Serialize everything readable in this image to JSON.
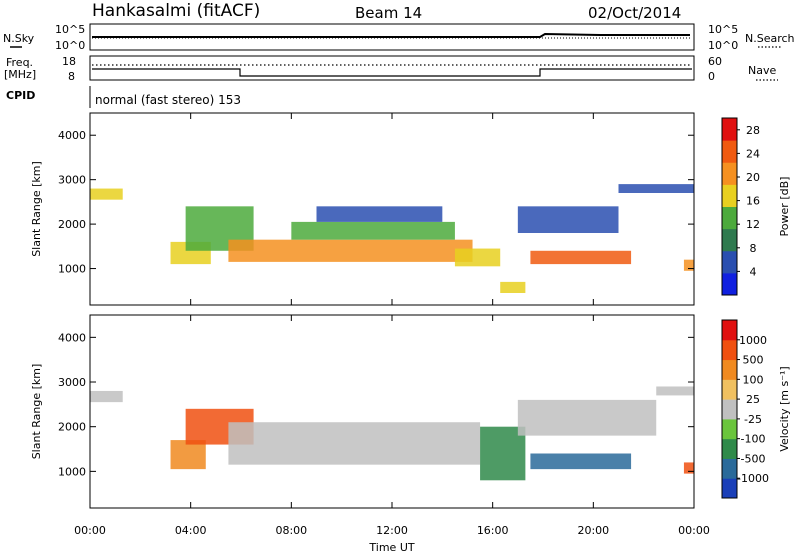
{
  "header": {
    "station": "Hankasalmi (fitACF)",
    "beam": "Beam 14",
    "date": "02/Oct/2014"
  },
  "panels": {
    "noise": {
      "left_label": "N.Sky",
      "right_label": "N.Search",
      "ticks_left": [
        "10^5",
        "10^0"
      ],
      "ticks_right": [
        "10^5",
        "10^0"
      ]
    },
    "freq": {
      "left_label_1": "Freq.",
      "left_label_2": "[MHz]",
      "right_label": "Nave",
      "ticks_left": [
        "18",
        "8"
      ],
      "ticks_right": [
        "60",
        "0"
      ]
    },
    "cpid": {
      "label": "CPID",
      "text": "normal (fast stereo) 153"
    }
  },
  "chart_data": [
    {
      "type": "heatmap",
      "name": "power",
      "ylabel": "Slant Range [km]",
      "xlabel": "Time UT",
      "x_ticks": [
        "00:00",
        "04:00",
        "08:00",
        "12:00",
        "16:00",
        "20:00",
        "00:00"
      ],
      "y_ticks": [
        1000,
        2000,
        3000,
        4000
      ],
      "ylim": [
        180,
        4500
      ],
      "xlim_hours": [
        0,
        24
      ],
      "colorbar": {
        "label": "Power [dB]",
        "ticks": [
          4,
          8,
          12,
          16,
          20,
          24,
          28
        ],
        "range": [
          0,
          30
        ],
        "colors": [
          "#1020e0",
          "#2a4fb0",
          "#2f7a4f",
          "#4caa3c",
          "#e8d020",
          "#f59020",
          "#f05a10",
          "#e01010"
        ]
      },
      "regions": [
        {
          "t0": 0.0,
          "t1": 1.3,
          "r0": 2550,
          "r1": 2800,
          "level": 4
        },
        {
          "t0": 3.2,
          "t1": 4.8,
          "r0": 1100,
          "r1": 1600,
          "level": 4
        },
        {
          "t0": 3.8,
          "t1": 6.5,
          "r0": 1400,
          "r1": 2400,
          "level": 3
        },
        {
          "t0": 5.5,
          "t1": 15.2,
          "r0": 1150,
          "r1": 1650,
          "level": 5
        },
        {
          "t0": 8.0,
          "t1": 14.5,
          "r0": 1650,
          "r1": 2050,
          "level": 3
        },
        {
          "t0": 9.0,
          "t1": 14.0,
          "r0": 2050,
          "r1": 2400,
          "level": 1
        },
        {
          "t0": 14.5,
          "t1": 16.3,
          "r0": 1050,
          "r1": 1450,
          "level": 4
        },
        {
          "t0": 16.3,
          "t1": 17.3,
          "r0": 450,
          "r1": 700,
          "level": 4
        },
        {
          "t0": 17.5,
          "t1": 21.5,
          "r0": 1100,
          "r1": 1400,
          "level": 6
        },
        {
          "t0": 17.0,
          "t1": 21.0,
          "r0": 1800,
          "r1": 2400,
          "level": 1
        },
        {
          "t0": 21.0,
          "t1": 24.0,
          "r0": 2700,
          "r1": 2900,
          "level": 1
        },
        {
          "t0": 23.6,
          "t1": 24.0,
          "r0": 950,
          "r1": 1200,
          "level": 5
        }
      ]
    },
    {
      "type": "heatmap",
      "name": "velocity",
      "ylabel": "Slant Range [km]",
      "xlabel": "Time UT",
      "x_ticks": [
        "00:00",
        "04:00",
        "08:00",
        "12:00",
        "16:00",
        "20:00",
        "00:00"
      ],
      "y_ticks": [
        1000,
        2000,
        3000,
        4000
      ],
      "ylim": [
        180,
        4500
      ],
      "xlim_hours": [
        0,
        24
      ],
      "colorbar": {
        "label": "Velocity [m s⁻¹]",
        "ticks": [
          "1000",
          "500",
          "100",
          "25",
          "-25",
          "-100",
          "-500",
          "-1000"
        ],
        "colors": [
          "#1a3fb8",
          "#2a6a9a",
          "#2f8a4a",
          "#6ac53c",
          "#c0c0c0",
          "#f0c060",
          "#f08a20",
          "#f05010",
          "#e01010"
        ]
      },
      "regions": [
        {
          "t0": 0.0,
          "t1": 1.3,
          "r0": 2550,
          "r1": 2800,
          "level": 4
        },
        {
          "t0": 3.2,
          "t1": 4.6,
          "r0": 1050,
          "r1": 1700,
          "level": 6
        },
        {
          "t0": 3.8,
          "t1": 6.5,
          "r0": 1600,
          "r1": 2400,
          "level": 7
        },
        {
          "t0": 5.5,
          "t1": 15.5,
          "r0": 1150,
          "r1": 2100,
          "level": 4
        },
        {
          "t0": 15.5,
          "t1": 17.3,
          "r0": 800,
          "r1": 2000,
          "level": 2
        },
        {
          "t0": 17.5,
          "t1": 21.5,
          "r0": 1050,
          "r1": 1400,
          "level": 1
        },
        {
          "t0": 17.0,
          "t1": 22.5,
          "r0": 1800,
          "r1": 2600,
          "level": 4
        },
        {
          "t0": 22.5,
          "t1": 24.0,
          "r0": 2700,
          "r1": 2900,
          "level": 4
        },
        {
          "t0": 23.6,
          "t1": 24.0,
          "r0": 950,
          "r1": 1200,
          "level": 7
        }
      ]
    }
  ]
}
